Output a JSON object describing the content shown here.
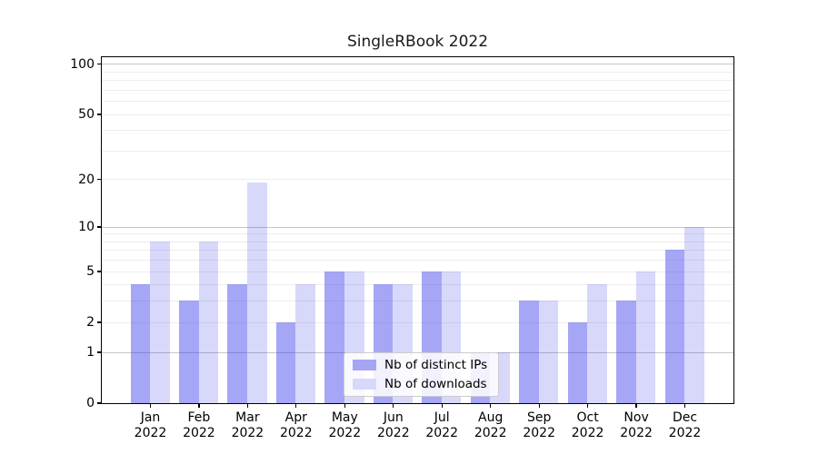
{
  "chart_data": {
    "type": "bar",
    "title": "SingleRBook 2022",
    "categories": [
      "Jan",
      "Feb",
      "Mar",
      "Apr",
      "May",
      "Jun",
      "Jul",
      "Aug",
      "Sep",
      "Oct",
      "Nov",
      "Dec"
    ],
    "year_label": "2022",
    "series": [
      {
        "name": "Nb of distinct IPs",
        "color": "#a5a5f6",
        "fill": "rgba(60,60,235,0.46)",
        "values": [
          4,
          3,
          4,
          2,
          5,
          4,
          5,
          1,
          3,
          2,
          3,
          7
        ]
      },
      {
        "name": "Nb of downloads",
        "color": "#d8d8fb",
        "fill": "rgba(60,60,235,0.20)",
        "values": [
          8,
          8,
          19,
          4,
          5,
          4,
          5,
          1,
          3,
          4,
          5,
          10
        ]
      }
    ],
    "yscale": "log1p",
    "ylim": [
      0,
      110
    ],
    "yticks": [
      0,
      1,
      2,
      5,
      10,
      20,
      50,
      100
    ],
    "minor_gridlines": [
      3,
      4,
      6,
      7,
      8,
      9,
      30,
      40,
      60,
      70,
      80,
      90
    ],
    "grid": true,
    "legend_position": "lower center"
  },
  "colors": {
    "grid_major": "#c6c6c6",
    "grid_minor": "#ededed",
    "spine": "#000000",
    "text": "#000000",
    "background": "#ffffff",
    "legend_border": "#cccccc"
  }
}
